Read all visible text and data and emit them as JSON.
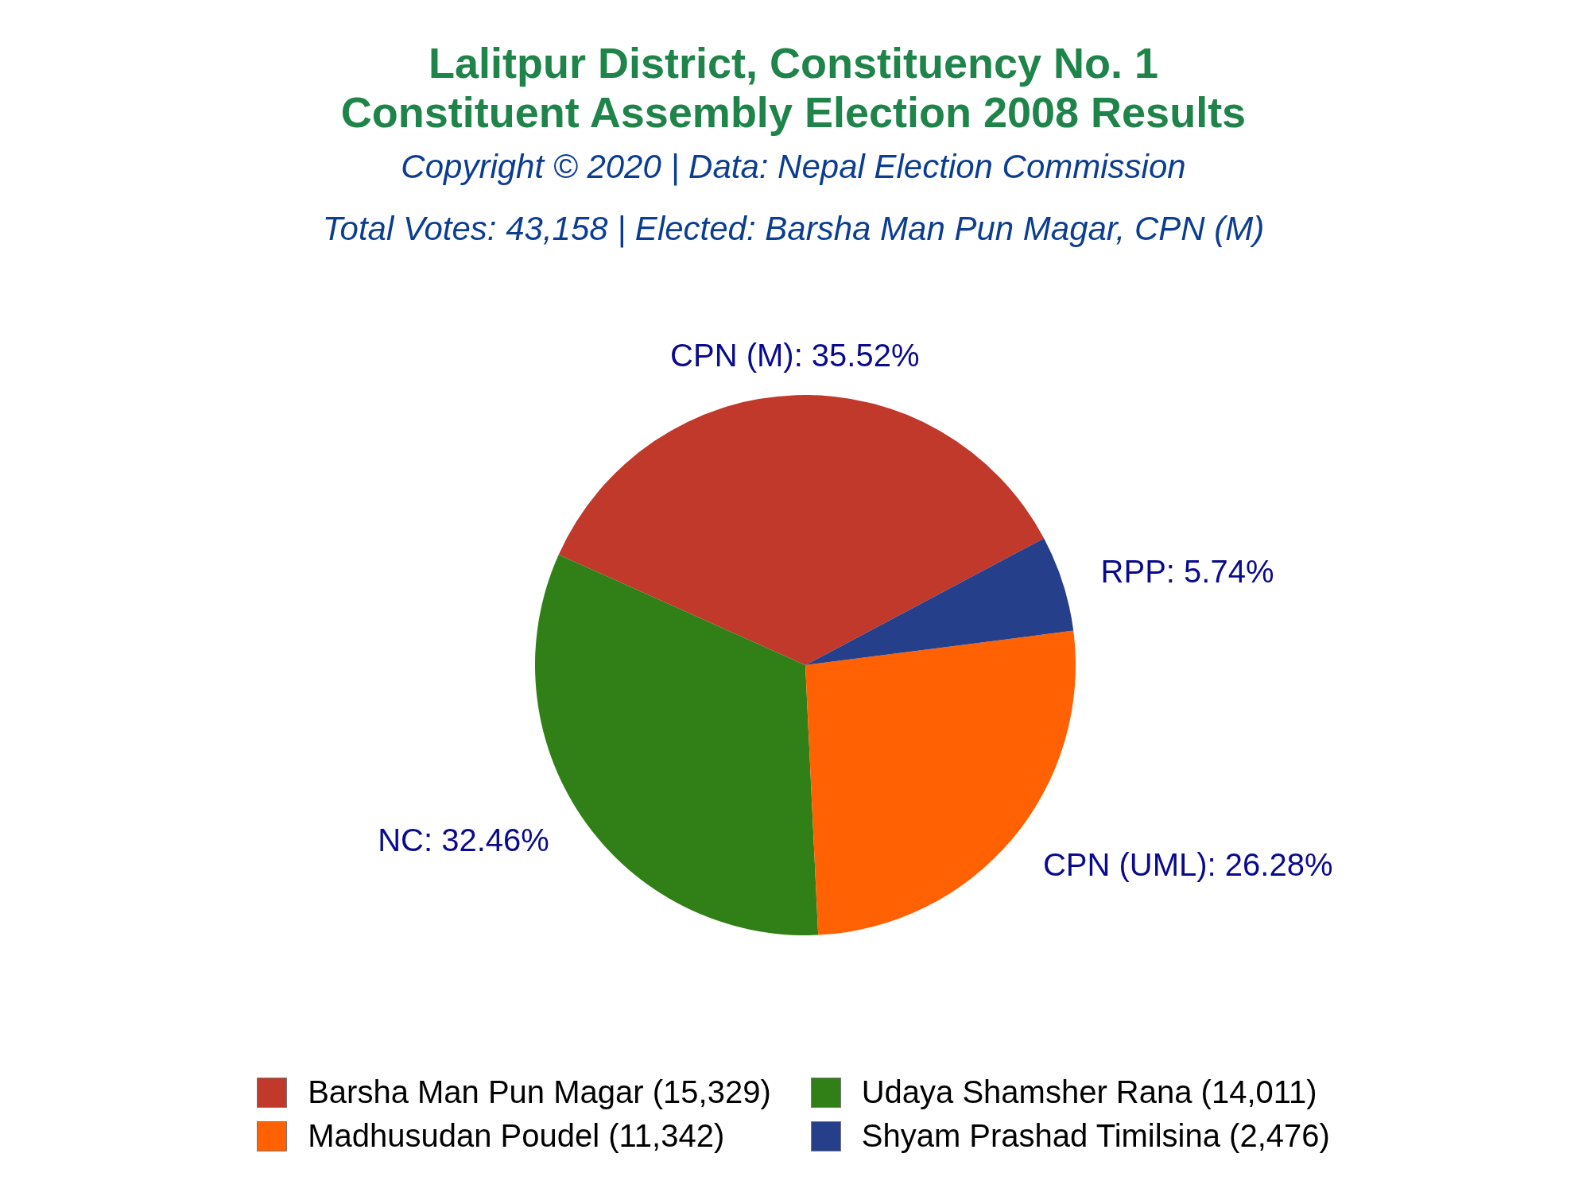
{
  "chart_data": {
    "type": "pie",
    "title": "Lalitpur District, Constituency No. 1\nConstituent Assembly Election 2008 Results",
    "subtitle": "Total Votes: 43,158 | Elected: Barsha Man Pun Magar, CPN (M)",
    "annotations": [
      "Copyright © 2020 | Data: Nepal Election Commission"
    ],
    "categories": [
      "Barsha Man Pun Magar (15,329)",
      "Udaya Shamsher Rana (14,011)",
      "Madhusudan Poudel (11,342)",
      "Shyam Prashad Timilsina (2,476)"
    ],
    "values": [
      35.52,
      32.46,
      26.28,
      5.74
    ],
    "colors": [
      "#c0392b",
      "#317f17",
      "#ff6103",
      "#253f8a"
    ],
    "value_labels": [
      "CPN (M): 35.52%",
      "NC: 32.46%",
      "CPN (UML): 26.28%",
      "RPP: 5.74%"
    ],
    "legend": "bottom"
  }
}
